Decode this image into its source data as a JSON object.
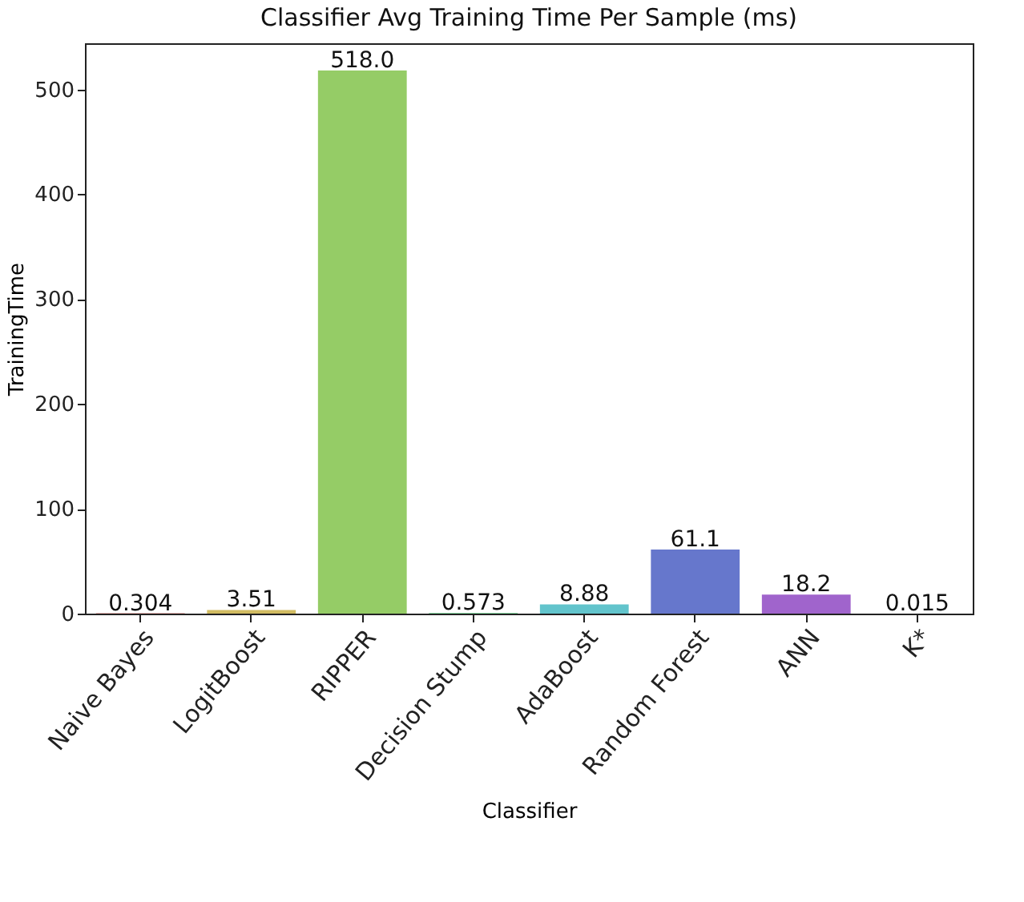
{
  "chart_data": {
    "type": "bar",
    "title": "Classifier Avg Training Time Per Sample (ms)",
    "xlabel": "Classifier",
    "ylabel": "TrainingTime",
    "categories": [
      "Naive Bayes",
      "LogitBoost",
      "RIPPER",
      "Decision Stump",
      "AdaBoost",
      "Random Forest",
      "ANN",
      "K*"
    ],
    "values": [
      0.304,
      3.51,
      518.0,
      0.573,
      8.88,
      61.1,
      18.2,
      0.015
    ],
    "value_labels": [
      "0.304",
      "3.51",
      "518.0",
      "0.573",
      "8.88",
      "61.1",
      "18.2",
      "0.015"
    ],
    "colors": [
      "#d16a62",
      "#d1bc62",
      "#95cc66",
      "#62d183",
      "#62c4cc",
      "#6677cc",
      "#a064cc",
      "#d162b1"
    ],
    "ylim": [
      0,
      544
    ],
    "yticks": [
      0,
      100,
      200,
      300,
      400,
      500
    ],
    "grid": false
  }
}
